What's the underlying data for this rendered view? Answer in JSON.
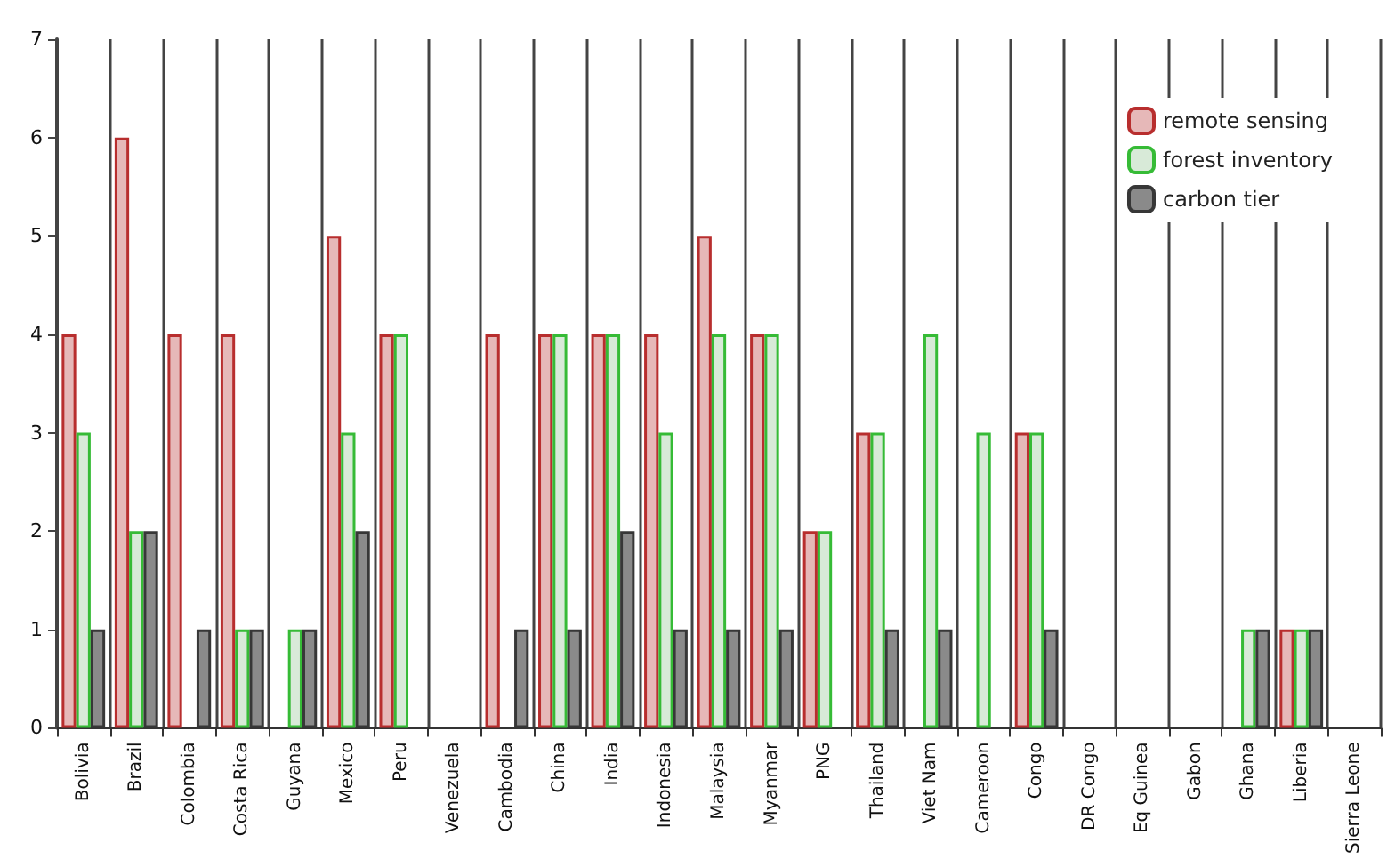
{
  "chart_data": {
    "type": "bar",
    "categories": [
      "Bolivia",
      "Brazil",
      "Colombia",
      "Costa Rica",
      "Guyana",
      "Mexico",
      "Peru",
      "Venezuela",
      "Cambodia",
      "China",
      "India",
      "Indonesia",
      "Malaysia",
      "Myanmar",
      "PNG",
      "Thailand",
      "Viet Nam",
      "Cameroon",
      "Congo",
      "DR Congo",
      "Eq Guinea",
      "Gabon",
      "Ghana",
      "Liberia",
      "Sierra Leone"
    ],
    "series": [
      {
        "name": "remote sensing",
        "color": "#e6b8b8",
        "values": [
          4,
          6,
          4,
          4,
          0,
          5,
          4,
          0,
          4,
          4,
          4,
          4,
          5,
          4,
          2,
          3,
          0,
          0,
          3,
          0,
          0,
          0,
          0,
          1,
          0
        ]
      },
      {
        "name": "forest inventory",
        "color": "#d8ead8",
        "values": [
          3,
          2,
          0,
          1,
          1,
          3,
          4,
          0,
          0,
          4,
          4,
          3,
          4,
          4,
          2,
          3,
          4,
          3,
          3,
          0,
          0,
          0,
          1,
          1,
          0
        ]
      },
      {
        "name": "carbon tier",
        "color": "#8a8a8a",
        "values": [
          1,
          2,
          1,
          1,
          1,
          2,
          0,
          0,
          1,
          1,
          2,
          1,
          1,
          1,
          0,
          1,
          1,
          0,
          1,
          0,
          0,
          0,
          1,
          1,
          0
        ]
      }
    ],
    "ylim": [
      0,
      7
    ],
    "yticks": [
      0,
      1,
      2,
      3,
      4,
      5,
      6,
      7
    ],
    "grid": "x",
    "legend": "top right"
  }
}
